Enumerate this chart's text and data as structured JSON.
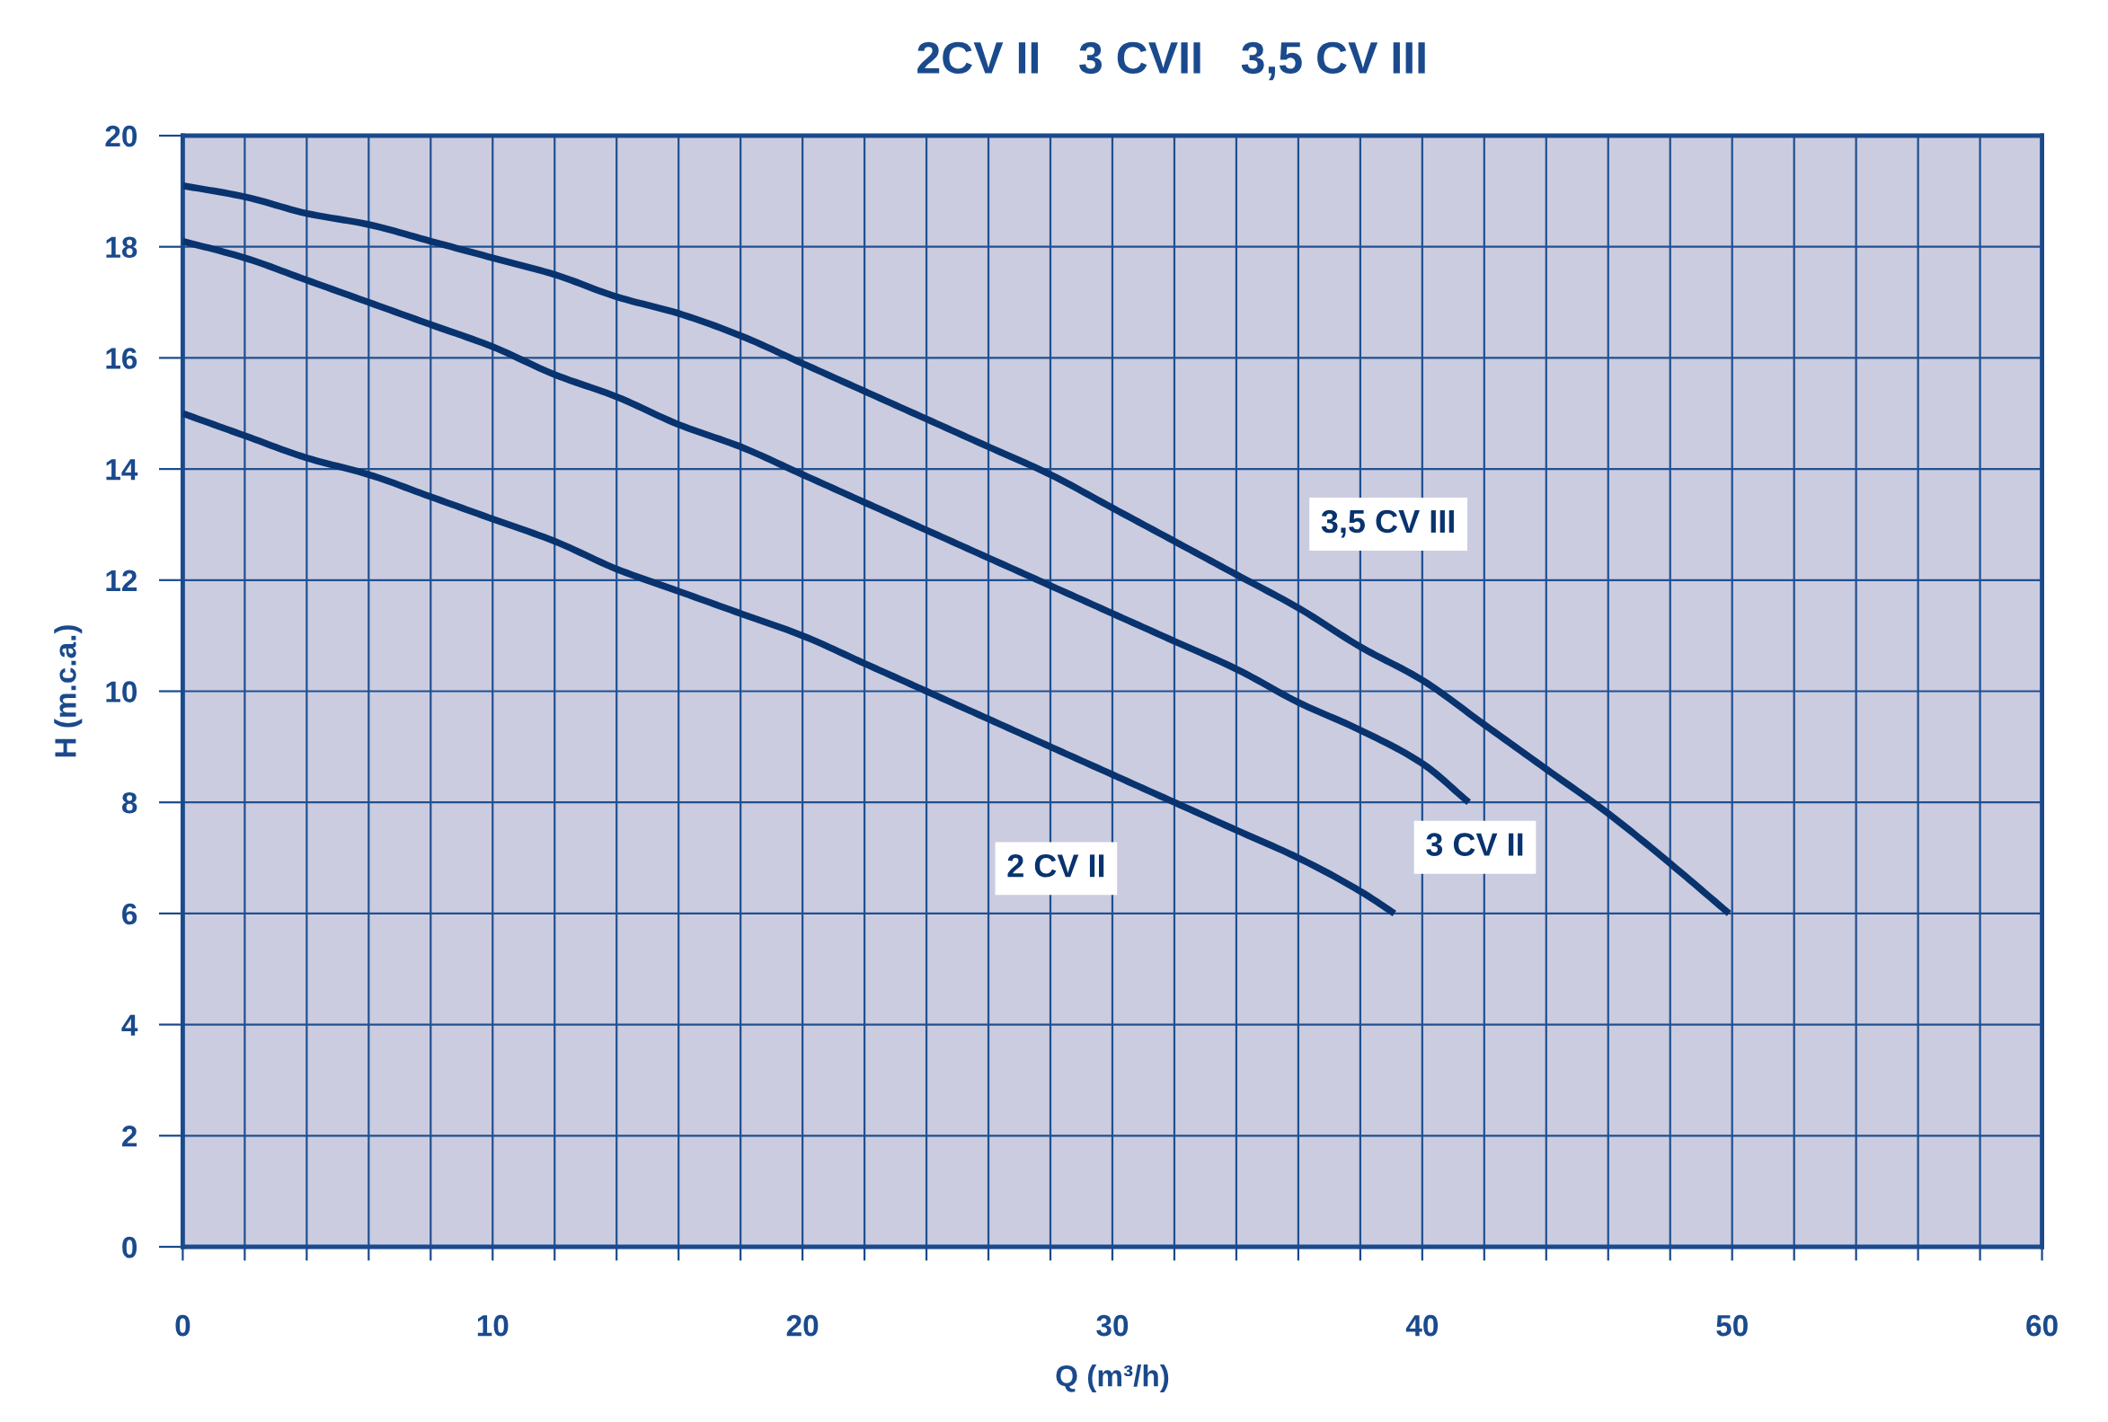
{
  "chart_data": {
    "type": "line",
    "title": "2CV II   3 CVII   3,5 CV III",
    "xlabel": "Q (m³/h)",
    "ylabel": "H (m.c.a.)",
    "xlim": [
      0,
      60
    ],
    "ylim": [
      0,
      20
    ],
    "xticks": [
      0,
      {
        "value": 2,
        "label": null
      },
      {
        "value": 4,
        "label": null
      },
      {
        "value": 6,
        "label": null
      },
      {
        "value": 8,
        "label": null
      },
      10,
      {
        "value": 12,
        "label": null
      },
      {
        "value": 14,
        "label": null
      },
      {
        "value": 16,
        "label": null
      },
      {
        "value": 18,
        "label": null
      },
      20,
      {
        "value": 22,
        "label": null
      },
      {
        "value": 24,
        "label": null
      },
      {
        "value": 26,
        "label": null
      },
      {
        "value": 28,
        "label": null
      },
      30,
      {
        "value": 32,
        "label": null
      },
      {
        "value": 34,
        "label": null
      },
      {
        "value": 36,
        "label": null
      },
      {
        "value": 38,
        "label": null
      },
      40,
      {
        "value": 42,
        "label": null
      },
      {
        "value": 44,
        "label": null
      },
      {
        "value": 46,
        "label": null
      },
      {
        "value": 48,
        "label": null
      },
      50,
      {
        "value": 52,
        "label": null
      },
      {
        "value": 54,
        "label": null
      },
      {
        "value": 56,
        "label": null
      },
      {
        "value": 58,
        "label": null
      },
      60
    ],
    "yticks": [
      0,
      2,
      4,
      6,
      8,
      10,
      12,
      14,
      16,
      18,
      20
    ],
    "grid": true,
    "line_style": "solid",
    "series": [
      {
        "name": "2 CV II",
        "color": "#08336e",
        "x": [
          0,
          2,
          4,
          6,
          8,
          10,
          12,
          14,
          16,
          18,
          20,
          22,
          24,
          26,
          28,
          30,
          32,
          34,
          36,
          38,
          39.1
        ],
        "values": [
          15.0,
          14.6,
          14.2,
          13.9,
          13.5,
          13.1,
          12.7,
          12.2,
          11.8,
          11.4,
          11.0,
          10.5,
          10.0,
          9.5,
          9.0,
          8.5,
          8.0,
          7.5,
          7.0,
          6.4,
          6.0
        ]
      },
      {
        "name": "3 CV II",
        "color": "#08336e",
        "x": [
          0,
          2,
          4,
          6,
          8,
          10,
          12,
          14,
          16,
          18,
          20,
          22,
          24,
          26,
          28,
          30,
          32,
          34,
          36,
          38,
          40,
          41.5
        ],
        "values": [
          18.1,
          17.8,
          17.4,
          17.0,
          16.6,
          16.2,
          15.7,
          15.3,
          14.8,
          14.4,
          13.9,
          13.4,
          12.9,
          12.4,
          11.9,
          11.4,
          10.9,
          10.4,
          9.8,
          9.3,
          8.7,
          8.0
        ]
      },
      {
        "name": "3,5 CV III",
        "color": "#08336e",
        "x": [
          0,
          2,
          4,
          6,
          8,
          10,
          12,
          14,
          16,
          18,
          20,
          22,
          24,
          26,
          28,
          30,
          32,
          34,
          36,
          38,
          40,
          42,
          44,
          46,
          48,
          49.9
        ],
        "values": [
          19.1,
          18.9,
          18.6,
          18.4,
          18.1,
          17.8,
          17.5,
          17.1,
          16.8,
          16.4,
          15.9,
          15.4,
          14.9,
          14.4,
          13.9,
          13.3,
          12.7,
          12.1,
          11.5,
          10.8,
          10.2,
          9.4,
          8.6,
          7.8,
          6.9,
          6.0
        ]
      }
    ]
  }
}
